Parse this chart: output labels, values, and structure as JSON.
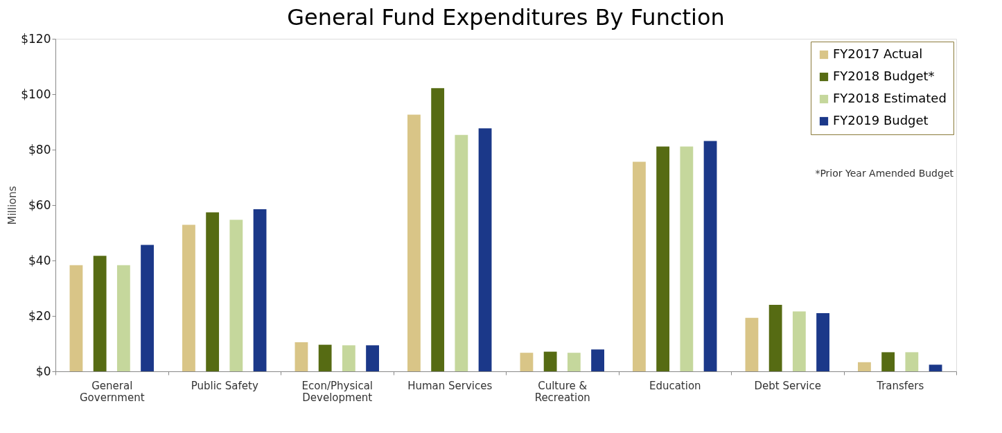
{
  "chart_data": {
    "type": "bar",
    "title": "General Fund Expenditures By Function",
    "ylabel": "Millions",
    "categories": [
      "General Government",
      "Public Safety",
      "Econ/Physical Development",
      "Human Services",
      "Culture & Recreation",
      "Education",
      "Debt Service",
      "Transfers"
    ],
    "series": [
      {
        "name": "FY2017 Actual",
        "color": "#d9c587",
        "values": [
          38.3,
          52.9,
          10.5,
          92.6,
          6.7,
          75.6,
          19.3,
          3.3
        ]
      },
      {
        "name": "FY2018 Budget*",
        "color": "#566b13",
        "values": [
          41.7,
          57.4,
          9.6,
          102.2,
          7.1,
          81.1,
          24.0,
          6.9
        ]
      },
      {
        "name": "FY2018 Estimated",
        "color": "#c5d79c",
        "values": [
          38.3,
          54.7,
          9.4,
          85.3,
          6.7,
          81.1,
          21.6,
          6.9
        ]
      },
      {
        "name": "FY2019 Budget",
        "color": "#1b3889",
        "values": [
          45.6,
          58.5,
          9.4,
          87.7,
          7.9,
          83.1,
          21.0,
          2.4
        ]
      }
    ],
    "ylim": [
      0,
      120
    ],
    "yticks": [
      {
        "value": 0,
        "label": "$0"
      },
      {
        "value": 20,
        "label": "$20"
      },
      {
        "value": 40,
        "label": "$40"
      },
      {
        "value": 60,
        "label": "$60"
      },
      {
        "value": 80,
        "label": "$80"
      },
      {
        "value": 100,
        "label": "$100"
      },
      {
        "value": 120,
        "label": "$120"
      }
    ],
    "annotations": [
      "*Prior Year Amended Budget"
    ],
    "legend": "top right",
    "grid": false
  }
}
